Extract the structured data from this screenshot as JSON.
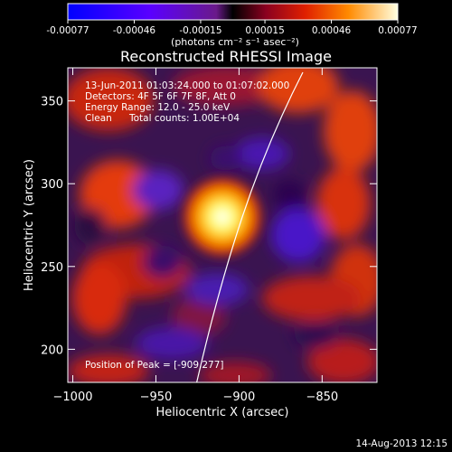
{
  "chart_data": {
    "type": "heatmap",
    "title": "Reconstructed RHESSI Image",
    "xlabel": "Heliocentric X (arcsec)",
    "ylabel": "Heliocentric Y (arcsec)",
    "xlim": [
      -1003,
      -817
    ],
    "ylim": [
      180,
      370
    ],
    "x_ticks": [
      -1000,
      -950,
      -900,
      -850
    ],
    "x_tick_labels": [
      "−1000",
      "−950",
      "−900",
      "−850"
    ],
    "y_ticks": [
      200,
      250,
      300,
      350
    ],
    "y_tick_labels": [
      "200",
      "250",
      "300",
      "350"
    ],
    "colorbar": {
      "range": [
        -0.00077,
        0.00077
      ],
      "ticks": [
        -0.00077,
        -0.00046,
        -0.00015,
        0.00015,
        0.00046,
        0.00077
      ],
      "tick_labels": [
        "-0.00077",
        "-0.00046",
        "-0.00015",
        "0.00015",
        "0.00046",
        "0.00077"
      ],
      "unit_label": "(photons cm⁻² s⁻¹ asec⁻²)"
    },
    "annotations": [
      "13-Jun-2011 01:03:24.000 to 01:07:02.000",
      "Detectors: 4F 5F 6F 7F 8F, Att 0",
      "Energy Range: 12.0 - 25.0 keV",
      "Clean",
      "Total counts: 1.00E+04"
    ],
    "peak_label": "Position of Peak = [-909,277]",
    "peak": {
      "x": -909,
      "y": 277
    },
    "footer": "14-Aug-2013 12:15",
    "grid": false
  }
}
